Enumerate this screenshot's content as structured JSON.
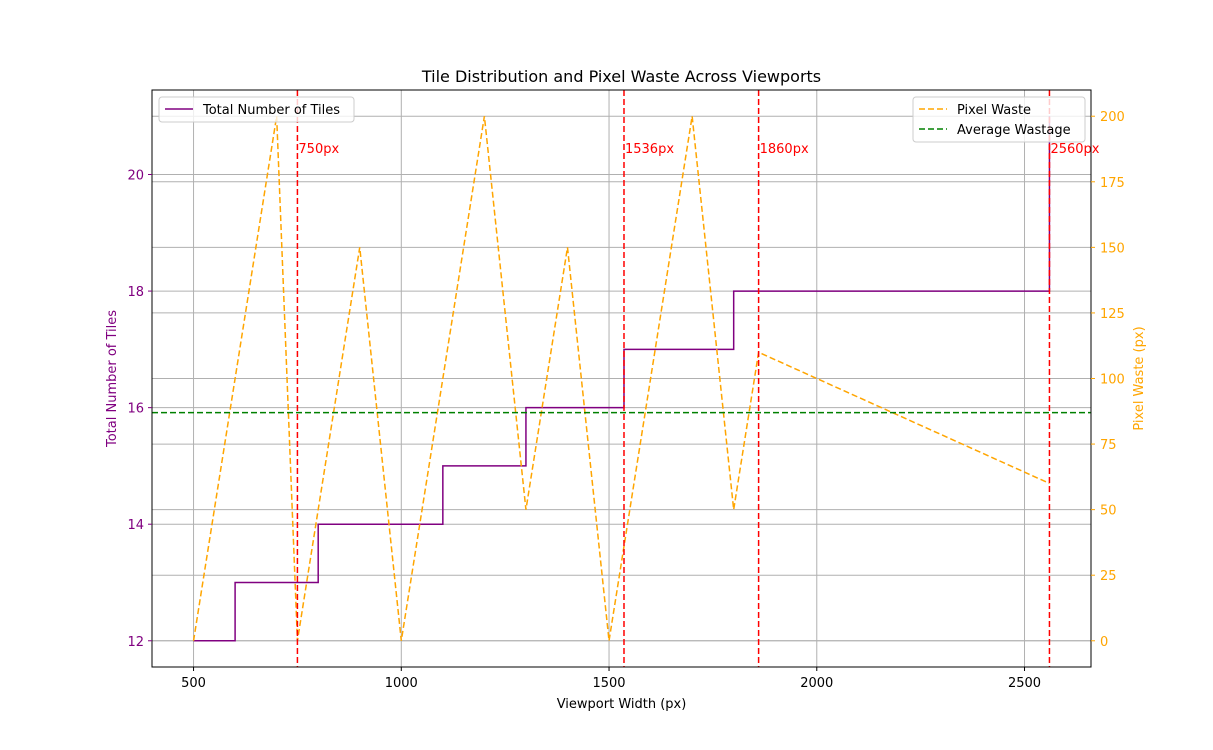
{
  "chart_data": {
    "type": "line",
    "title": "Tile Distribution and Pixel Waste Across Viewports",
    "xlabel": "Viewport Width (px)",
    "ylabel_left": "Total Number of Tiles",
    "ylabel_right": "Pixel Waste (px)",
    "xlim": [
      400,
      2660
    ],
    "ylim_left": [
      11.55,
      21.45
    ],
    "ylim_right": [
      -10,
      210
    ],
    "x_ticks": [
      500,
      1000,
      1500,
      2000,
      2500
    ],
    "y_ticks_left": [
      12,
      14,
      16,
      18,
      20
    ],
    "y_ticks_right": [
      0,
      25,
      50,
      75,
      100,
      125,
      150,
      175,
      200
    ],
    "grid": true,
    "colors": {
      "tiles": "#800080",
      "waste": "#ffa500",
      "average": "#008000",
      "breakpoints": "#ff0000",
      "grid": "#b0b0b0"
    },
    "series": [
      {
        "name": "Total Number of Tiles",
        "axis": "left",
        "style": "step-post",
        "x": [
          500,
          600,
          800,
          1100,
          1300,
          1536,
          1800,
          2560
        ],
        "y": [
          12,
          13,
          14,
          15,
          16,
          17,
          18,
          21
        ]
      },
      {
        "name": "Pixel Waste",
        "axis": "right",
        "style": "dashed",
        "x": [
          500,
          700,
          750,
          900,
          1000,
          1200,
          1300,
          1400,
          1500,
          1700,
          1800,
          1860,
          2560
        ],
        "y": [
          0,
          200,
          0,
          150,
          0,
          200,
          50,
          150,
          0,
          200,
          50,
          110,
          60
        ]
      }
    ],
    "average_line": {
      "name": "Average Wastage",
      "axis": "right",
      "value": 87
    },
    "breakpoints": [
      {
        "x": 750,
        "label": "750px"
      },
      {
        "x": 1536,
        "label": "1536px"
      },
      {
        "x": 1860,
        "label": "1860px"
      },
      {
        "x": 2560,
        "label": "2560px"
      }
    ],
    "legend_left": {
      "placement": "upper-left",
      "entries": [
        "Total Number of Tiles"
      ]
    },
    "legend_right": {
      "placement": "upper-right",
      "entries": [
        "Pixel Waste",
        "Average Wastage"
      ]
    }
  }
}
